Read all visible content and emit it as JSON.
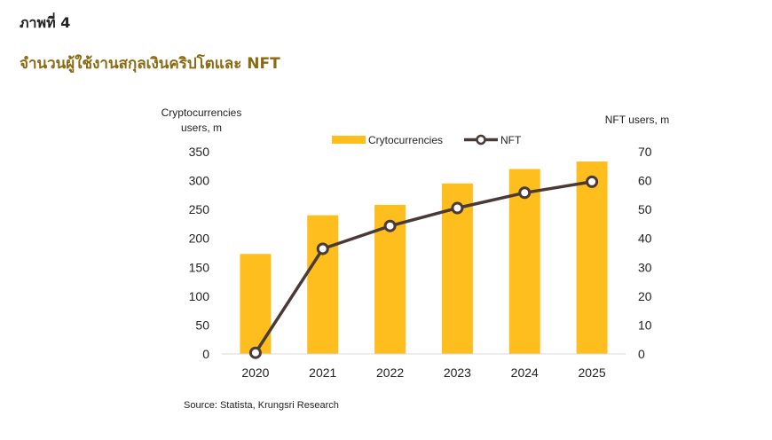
{
  "figure_label": "ภาพที่ 4",
  "figure_title": "จำนวนผู้ใช้งานสกุลเงินคริปโตและ NFT",
  "source": "Source: Statista, Krungsri Research",
  "colors": {
    "bar": "#FDBE1E",
    "line": "#4a3a37",
    "marker_fill": "#ffffff",
    "title": "#8a6a12"
  },
  "chart_data": {
    "type": "bar+line",
    "categories": [
      "2020",
      "2021",
      "2022",
      "2023",
      "2024",
      "2025"
    ],
    "left_axis": {
      "label_line1": "Cryptocurrencies",
      "label_line2": "users, m",
      "ylim": [
        0,
        350
      ],
      "ticks": [
        0,
        50,
        100,
        150,
        200,
        250,
        300,
        350
      ]
    },
    "right_axis": {
      "label": "NFT users, m",
      "ylim": [
        0,
        70
      ],
      "ticks": [
        0,
        10,
        20,
        30,
        40,
        50,
        60,
        70
      ]
    },
    "series": [
      {
        "name": "Crytocurrencies",
        "type": "bar",
        "axis": "left",
        "values": [
          173,
          240,
          258,
          295,
          320,
          333
        ]
      },
      {
        "name": "NFT",
        "type": "line",
        "axis": "right",
        "values": [
          0.4,
          36.4,
          44.3,
          50.5,
          55.8,
          59.6
        ]
      }
    ],
    "legend": "top-center",
    "grid": false
  }
}
